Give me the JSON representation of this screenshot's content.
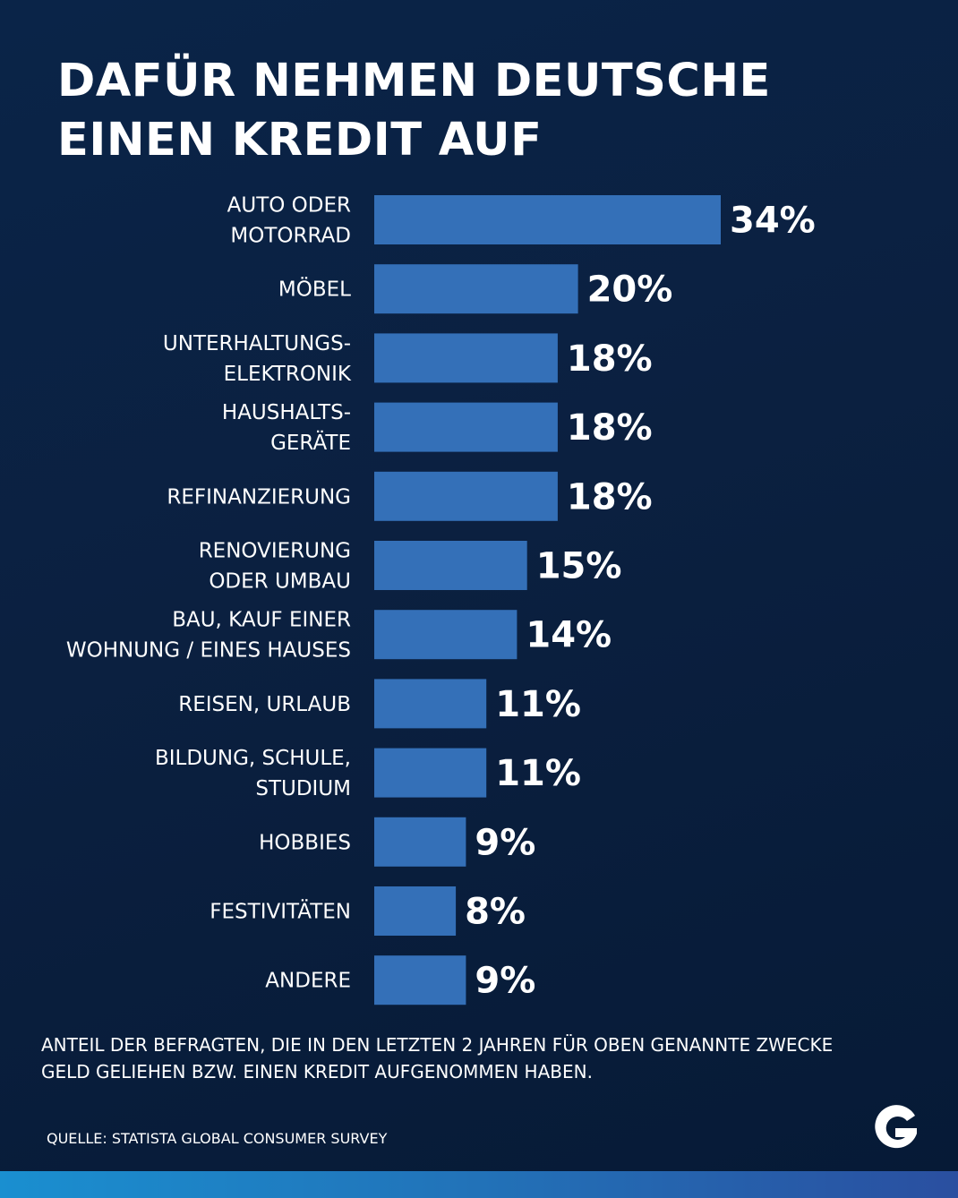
{
  "title_lines": [
    "DAFÜR NEHMEN DEUTSCHE",
    "EINEN KREDIT AUF"
  ],
  "note_lines": [
    "ANTEIL DER BEFRAGTEN, DIE IN DEN LETZTEN 2 JAHREN FÜR OBEN GENANNTE ZWECKE",
    "GELD GELIEHEN BZW. EINEN KREDIT AUFGENOMMEN HABEN."
  ],
  "source": "QUELLE: STATISTA GLOBAL CONSUMER SURVEY",
  "logo_icon": "g-logo-icon",
  "colors": {
    "bar": "#3470b8",
    "background": "#0b2040",
    "text": "#ffffff",
    "strip": "#1a8fd0"
  },
  "chart_data": {
    "type": "bar",
    "orientation": "horizontal",
    "unit": "%",
    "categories": [
      [
        "AUTO ODER",
        "MOTORRAD"
      ],
      [
        "MÖBEL"
      ],
      [
        "UNTERHALTUNGS-",
        "ELEKTRONIK"
      ],
      [
        "HAUSHALTS-",
        "GERÄTE"
      ],
      [
        "REFINANZIERUNG"
      ],
      [
        "RENOVIERUNG",
        "ODER UMBAU"
      ],
      [
        "BAU, KAUF EINER",
        "WOHNUNG / EINES HAUSES"
      ],
      [
        "REISEN, URLAUB"
      ],
      [
        "BILDUNG, SCHULE,",
        "STUDIUM"
      ],
      [
        "HOBBIES"
      ],
      [
        "FESTIVITÄTEN"
      ],
      [
        "ANDERE"
      ]
    ],
    "values": [
      34,
      20,
      18,
      18,
      18,
      15,
      14,
      11,
      11,
      9,
      8,
      9
    ],
    "value_labels": [
      "34%",
      "20%",
      "18%",
      "18%",
      "18%",
      "15%",
      "14%",
      "11%",
      "11%",
      "9%",
      "8%",
      "9%"
    ],
    "title": "DAFÜR NEHMEN DEUTSCHE EINEN KREDIT AUF",
    "xlabel": "",
    "ylabel": "",
    "xlim": [
      0,
      34
    ],
    "grid": false,
    "legend": "none"
  }
}
